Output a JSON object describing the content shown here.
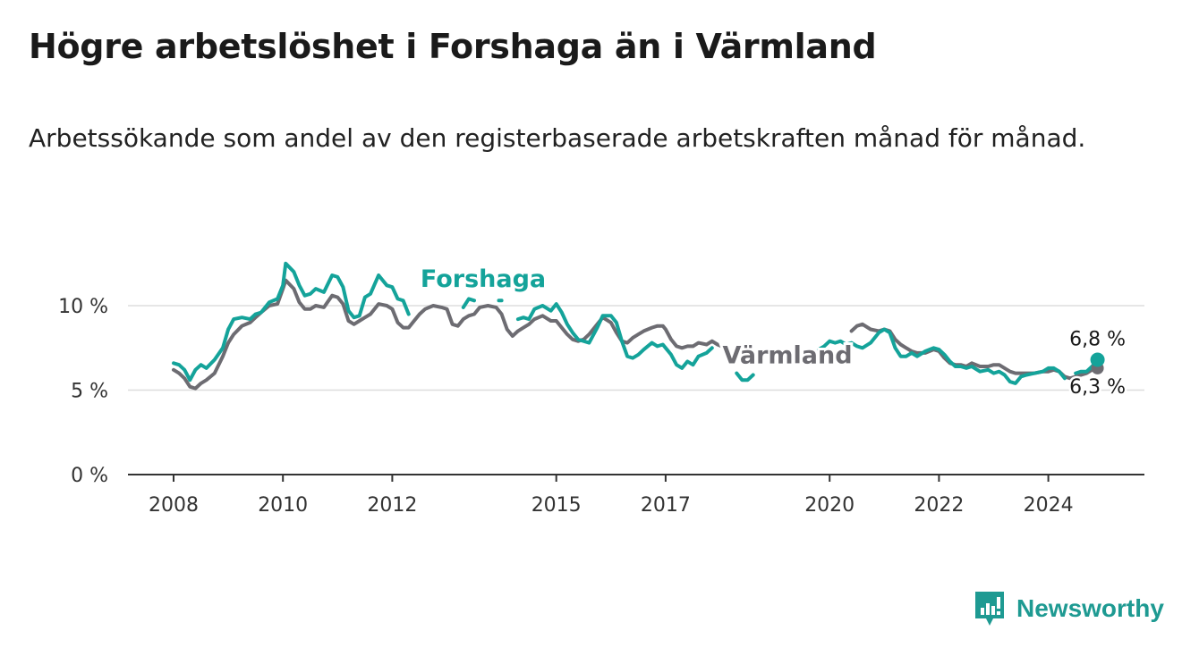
{
  "title": "Högre arbetslöshet i Forshaga än i Värmland",
  "subtitle": "Arbetssökande som andel av den registerbaserade arbetskraften månad för månad.",
  "brand": "Newsworthy",
  "colors": {
    "forshaga": "#14a39a",
    "varmland": "#6d6c72",
    "grid": "#dddddd",
    "axis": "#333333",
    "brand": "#1e9a92"
  },
  "chart_data": {
    "type": "line",
    "y_ticks": [
      0,
      5,
      10
    ],
    "y_tick_labels": [
      "0 %",
      "5 %",
      "10 %"
    ],
    "x_ticks": [
      2008,
      2010,
      2012,
      2015,
      2017,
      2020,
      2022,
      2024
    ],
    "x_tick_labels": [
      "2008",
      "2010",
      "2012",
      "2015",
      "2017",
      "2020",
      "2022",
      "2024"
    ],
    "xlim": [
      2007.8,
      2025.6
    ],
    "ylim": [
      0,
      13
    ],
    "grid": true,
    "series": [
      {
        "name": "Forshaga",
        "end_label": "6,8 %",
        "segments": [
          [
            [
              2008.0,
              6.6
            ],
            [
              2008.1,
              6.5
            ],
            [
              2008.2,
              6.2
            ],
            [
              2008.3,
              5.6
            ],
            [
              2008.4,
              6.2
            ],
            [
              2008.5,
              6.5
            ],
            [
              2008.6,
              6.3
            ],
            [
              2008.75,
              6.8
            ],
            [
              2008.9,
              7.5
            ],
            [
              2009.0,
              8.6
            ],
            [
              2009.1,
              9.2
            ],
            [
              2009.25,
              9.3
            ],
            [
              2009.4,
              9.2
            ],
            [
              2009.5,
              9.5
            ],
            [
              2009.6,
              9.6
            ],
            [
              2009.75,
              10.2
            ],
            [
              2009.9,
              10.4
            ],
            [
              2010.0,
              11.2
            ],
            [
              2010.05,
              12.5
            ],
            [
              2010.2,
              12.0
            ],
            [
              2010.3,
              11.2
            ],
            [
              2010.4,
              10.6
            ],
            [
              2010.5,
              10.7
            ],
            [
              2010.6,
              11.0
            ],
            [
              2010.75,
              10.8
            ],
            [
              2010.9,
              11.8
            ],
            [
              2011.0,
              11.7
            ],
            [
              2011.1,
              11.1
            ],
            [
              2011.2,
              9.7
            ],
            [
              2011.3,
              9.3
            ],
            [
              2011.4,
              9.4
            ],
            [
              2011.5,
              10.5
            ],
            [
              2011.6,
              10.7
            ],
            [
              2011.75,
              11.8
            ],
            [
              2011.9,
              11.2
            ],
            [
              2012.0,
              11.1
            ],
            [
              2012.1,
              10.4
            ],
            [
              2012.2,
              10.3
            ],
            [
              2012.3,
              9.5
            ]
          ],
          [
            [
              2013.3,
              9.9
            ],
            [
              2013.4,
              10.4
            ],
            [
              2013.5,
              10.3
            ]
          ],
          [
            [
              2013.95,
              10.3
            ],
            [
              2014.0,
              10.3
            ]
          ],
          [
            [
              2014.3,
              9.2
            ],
            [
              2014.4,
              9.3
            ],
            [
              2014.5,
              9.2
            ],
            [
              2014.6,
              9.8
            ],
            [
              2014.75,
              10.0
            ],
            [
              2014.9,
              9.7
            ],
            [
              2015.0,
              10.1
            ],
            [
              2015.1,
              9.6
            ],
            [
              2015.2,
              8.9
            ],
            [
              2015.3,
              8.4
            ],
            [
              2015.4,
              8.0
            ],
            [
              2015.5,
              7.9
            ],
            [
              2015.6,
              7.8
            ],
            [
              2015.75,
              8.7
            ],
            [
              2015.85,
              9.4
            ],
            [
              2016.0,
              9.4
            ],
            [
              2016.1,
              9.0
            ],
            [
              2016.2,
              7.9
            ],
            [
              2016.3,
              7.0
            ],
            [
              2016.4,
              6.9
            ],
            [
              2016.5,
              7.1
            ],
            [
              2016.6,
              7.4
            ],
            [
              2016.75,
              7.8
            ],
            [
              2016.85,
              7.6
            ],
            [
              2016.95,
              7.7
            ],
            [
              2017.0,
              7.5
            ],
            [
              2017.1,
              7.1
            ],
            [
              2017.2,
              6.5
            ],
            [
              2017.3,
              6.3
            ],
            [
              2017.4,
              6.7
            ],
            [
              2017.5,
              6.5
            ],
            [
              2017.6,
              7.0
            ],
            [
              2017.75,
              7.2
            ],
            [
              2017.85,
              7.5
            ]
          ],
          [
            [
              2018.3,
              6.0
            ],
            [
              2018.4,
              5.6
            ],
            [
              2018.5,
              5.6
            ],
            [
              2018.6,
              5.9
            ]
          ],
          [
            [
              2019.8,
              7.4
            ],
            [
              2019.9,
              7.6
            ],
            [
              2020.0,
              7.9
            ],
            [
              2020.1,
              7.8
            ],
            [
              2020.2,
              7.9
            ],
            [
              2020.3,
              7.7
            ],
            [
              2020.4,
              7.8
            ],
            [
              2020.5,
              7.6
            ],
            [
              2020.6,
              7.5
            ],
            [
              2020.75,
              7.8
            ],
            [
              2020.9,
              8.4
            ],
            [
              2021.0,
              8.6
            ],
            [
              2021.1,
              8.4
            ],
            [
              2021.2,
              7.5
            ],
            [
              2021.3,
              7.0
            ],
            [
              2021.4,
              7.0
            ],
            [
              2021.5,
              7.2
            ],
            [
              2021.6,
              7.0
            ],
            [
              2021.75,
              7.3
            ],
            [
              2021.9,
              7.5
            ],
            [
              2022.0,
              7.4
            ],
            [
              2022.1,
              7.1
            ],
            [
              2022.2,
              6.7
            ],
            [
              2022.3,
              6.4
            ],
            [
              2022.4,
              6.4
            ],
            [
              2022.5,
              6.3
            ],
            [
              2022.6,
              6.4
            ],
            [
              2022.75,
              6.1
            ],
            [
              2022.9,
              6.2
            ],
            [
              2023.0,
              6.0
            ],
            [
              2023.1,
              6.1
            ],
            [
              2023.2,
              5.9
            ],
            [
              2023.3,
              5.5
            ],
            [
              2023.4,
              5.4
            ],
            [
              2023.5,
              5.8
            ],
            [
              2023.6,
              5.9
            ],
            [
              2023.75,
              6.0
            ],
            [
              2023.9,
              6.1
            ],
            [
              2024.0,
              6.3
            ],
            [
              2024.1,
              6.3
            ],
            [
              2024.2,
              6.1
            ],
            [
              2024.3,
              5.7
            ]
          ],
          [
            [
              2024.5,
              6.0
            ],
            [
              2024.6,
              6.1
            ],
            [
              2024.7,
              6.1
            ],
            [
              2024.8,
              6.4
            ],
            [
              2024.9,
              6.8
            ]
          ]
        ]
      },
      {
        "name": "Värmland",
        "end_label": "6,3 %",
        "segments": [
          [
            [
              2008.0,
              6.2
            ],
            [
              2008.1,
              6.0
            ],
            [
              2008.2,
              5.7
            ],
            [
              2008.3,
              5.2
            ],
            [
              2008.4,
              5.1
            ],
            [
              2008.5,
              5.4
            ],
            [
              2008.6,
              5.6
            ],
            [
              2008.75,
              6.0
            ],
            [
              2008.9,
              7.0
            ],
            [
              2009.0,
              7.8
            ],
            [
              2009.1,
              8.3
            ],
            [
              2009.25,
              8.8
            ],
            [
              2009.4,
              9.0
            ],
            [
              2009.5,
              9.3
            ],
            [
              2009.6,
              9.6
            ],
            [
              2009.75,
              10.0
            ],
            [
              2009.9,
              10.1
            ],
            [
              2010.0,
              11.0
            ],
            [
              2010.05,
              11.5
            ],
            [
              2010.2,
              11.0
            ],
            [
              2010.3,
              10.2
            ],
            [
              2010.4,
              9.8
            ],
            [
              2010.5,
              9.8
            ],
            [
              2010.6,
              10.0
            ],
            [
              2010.75,
              9.9
            ],
            [
              2010.9,
              10.6
            ],
            [
              2011.0,
              10.5
            ],
            [
              2011.1,
              10.1
            ],
            [
              2011.2,
              9.1
            ],
            [
              2011.3,
              8.9
            ],
            [
              2011.4,
              9.1
            ],
            [
              2011.5,
              9.3
            ],
            [
              2011.6,
              9.5
            ],
            [
              2011.75,
              10.1
            ],
            [
              2011.9,
              10.0
            ],
            [
              2012.0,
              9.8
            ],
            [
              2012.1,
              9.0
            ],
            [
              2012.2,
              8.7
            ],
            [
              2012.3,
              8.7
            ],
            [
              2012.4,
              9.1
            ],
            [
              2012.5,
              9.5
            ],
            [
              2012.6,
              9.8
            ],
            [
              2012.75,
              10.0
            ],
            [
              2012.9,
              9.9
            ],
            [
              2013.0,
              9.8
            ],
            [
              2013.1,
              8.9
            ],
            [
              2013.2,
              8.8
            ],
            [
              2013.3,
              9.2
            ],
            [
              2013.4,
              9.4
            ],
            [
              2013.5,
              9.5
            ],
            [
              2013.6,
              9.9
            ],
            [
              2013.75,
              10.0
            ],
            [
              2013.9,
              9.9
            ],
            [
              2014.0,
              9.5
            ],
            [
              2014.1,
              8.6
            ],
            [
              2014.2,
              8.2
            ],
            [
              2014.3,
              8.5
            ],
            [
              2014.4,
              8.7
            ],
            [
              2014.5,
              8.9
            ],
            [
              2014.6,
              9.2
            ],
            [
              2014.75,
              9.4
            ],
            [
              2014.9,
              9.1
            ],
            [
              2015.0,
              9.1
            ],
            [
              2015.1,
              8.7
            ],
            [
              2015.2,
              8.3
            ],
            [
              2015.3,
              8.0
            ],
            [
              2015.4,
              7.9
            ],
            [
              2015.5,
              8.0
            ],
            [
              2015.6,
              8.3
            ],
            [
              2015.75,
              8.9
            ],
            [
              2015.85,
              9.3
            ],
            [
              2016.0,
              9.0
            ],
            [
              2016.1,
              8.4
            ],
            [
              2016.2,
              7.9
            ],
            [
              2016.3,
              7.8
            ],
            [
              2016.4,
              8.1
            ],
            [
              2016.5,
              8.3
            ],
            [
              2016.6,
              8.5
            ],
            [
              2016.75,
              8.7
            ],
            [
              2016.85,
              8.8
            ],
            [
              2016.95,
              8.8
            ],
            [
              2017.0,
              8.6
            ],
            [
              2017.1,
              8.0
            ],
            [
              2017.2,
              7.6
            ],
            [
              2017.3,
              7.5
            ],
            [
              2017.4,
              7.6
            ],
            [
              2017.5,
              7.6
            ],
            [
              2017.6,
              7.8
            ],
            [
              2017.75,
              7.7
            ],
            [
              2017.85,
              7.9
            ],
            [
              2017.95,
              7.7
            ],
            [
              2018.1,
              7.5
            ]
          ],
          [
            [
              2020.4,
              8.5
            ],
            [
              2020.5,
              8.8
            ],
            [
              2020.6,
              8.9
            ],
            [
              2020.75,
              8.6
            ],
            [
              2020.9,
              8.5
            ],
            [
              2021.0,
              8.6
            ],
            [
              2021.1,
              8.5
            ],
            [
              2021.2,
              8.0
            ],
            [
              2021.3,
              7.7
            ],
            [
              2021.4,
              7.5
            ],
            [
              2021.5,
              7.3
            ],
            [
              2021.6,
              7.2
            ],
            [
              2021.75,
              7.2
            ],
            [
              2021.9,
              7.4
            ],
            [
              2022.0,
              7.3
            ],
            [
              2022.1,
              6.9
            ],
            [
              2022.2,
              6.6
            ],
            [
              2022.3,
              6.5
            ],
            [
              2022.4,
              6.5
            ],
            [
              2022.5,
              6.4
            ],
            [
              2022.6,
              6.6
            ],
            [
              2022.75,
              6.4
            ],
            [
              2022.9,
              6.4
            ],
            [
              2023.0,
              6.5
            ],
            [
              2023.1,
              6.5
            ],
            [
              2023.2,
              6.3
            ],
            [
              2023.3,
              6.1
            ],
            [
              2023.4,
              6.0
            ],
            [
              2023.5,
              6.0
            ],
            [
              2023.6,
              6.0
            ],
            [
              2023.75,
              6.0
            ],
            [
              2023.9,
              6.1
            ],
            [
              2024.0,
              6.1
            ],
            [
              2024.1,
              6.2
            ],
            [
              2024.2,
              6.1
            ],
            [
              2024.3,
              5.8
            ],
            [
              2024.4,
              5.7
            ],
            [
              2024.5,
              5.8
            ],
            [
              2024.6,
              5.9
            ],
            [
              2024.7,
              6.0
            ],
            [
              2024.8,
              6.2
            ],
            [
              2024.9,
              6.3
            ]
          ]
        ]
      }
    ]
  }
}
